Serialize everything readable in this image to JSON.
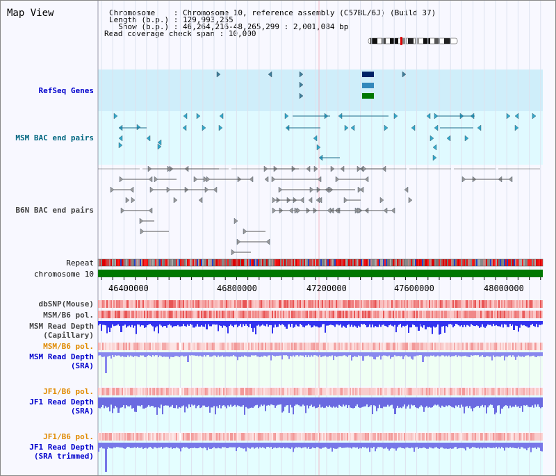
{
  "title": "Map View",
  "header": {
    "line1": "Chromosome    : Chromosome 10, reference assembly (C57BL/6J) (Build 37)",
    "line2": "Length (b.p.) : 129,993,255",
    "line3": "  Show (b.p.) : 46,264,216-48,265,299 : 2,001,084 bp",
    "line4": "Read coverage check span : 10,000"
  },
  "tracks": {
    "refseq": "RefSeq Genes",
    "msm_bac": "MSM BAC end pairs",
    "b6n_bac": "B6N BAC end pairs",
    "repeat": "Repeat",
    "chromosome": "chromosome 10",
    "dbsnp": "dbSNP(Mouse)",
    "msm_pol1": "MSM/B6 pol.",
    "msm_depth_cap1": "MSM Read Depth",
    "msm_depth_cap2": "(Capillary)",
    "msm_pol2": "MSM/B6 pol.",
    "msm_sra1": "MSM Read Depth",
    "msm_sra2": "(SRA)",
    "jf1_pol1": "JF1/B6 pol.",
    "jf1_sra1": "JF1 Read Depth",
    "jf1_sra2": "(SRA)",
    "jf1_pol2": "JF1/B6 pol.",
    "jf1_trim1": "JF1 Read Depth",
    "jf1_trim2": "(SRA trimmed)"
  },
  "axis": {
    "ticks": [
      "46400000",
      "46800000",
      "47200000",
      "47600000",
      "48000000"
    ]
  },
  "colors": {
    "blue_label": "#0000cc",
    "teal_label": "#006680",
    "gray_label": "#444444",
    "orange_label": "#e08a00",
    "chrom_green": "#007700",
    "refseq_bg": "#cfeefa",
    "bac_bg": "#e0faff"
  }
}
